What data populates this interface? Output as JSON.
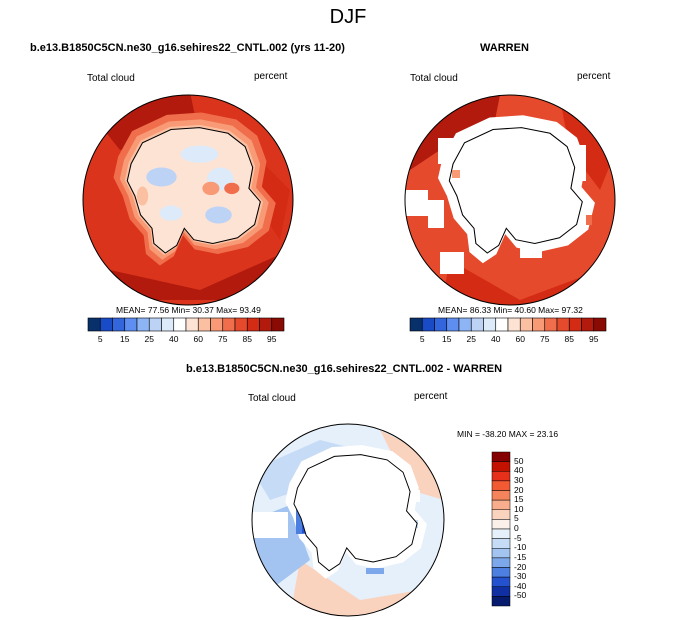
{
  "figure_title": "DJF",
  "panels": [
    {
      "title": "b.e13.B1850C5CN.ne30_g16.sehires22_CNTL.002 (yrs 11-20)",
      "left_label": "Total cloud",
      "right_label": "percent",
      "stats": "MEAN=  77.56  Min=  30.37  Max=  93.49",
      "colorbar_ticks": [
        "5",
        "15",
        "25",
        "40",
        "60",
        "75",
        "85",
        "95"
      ]
    },
    {
      "title": "WARREN",
      "left_label": "Total cloud",
      "right_label": "percent",
      "stats": "MEAN=  86.33  Min=  40.60  Max=  97.32",
      "colorbar_ticks": [
        "5",
        "15",
        "25",
        "40",
        "60",
        "75",
        "85",
        "95"
      ]
    },
    {
      "title": "b.e13.B1850C5CN.ne30_g16.sehires22_CNTL.002 - WARREN",
      "left_label": "Total cloud",
      "right_label": "percent",
      "stats": "MIN = -38.20  MAX =  23.16",
      "colorbar_ticks": [
        "50",
        "40",
        "30",
        "20",
        "15",
        "10",
        "5",
        "0",
        "-5",
        "-10",
        "-15",
        "-20",
        "-30",
        "-40",
        "-50"
      ]
    }
  ],
  "colors": {
    "abs_scale": [
      "#08306b",
      "#1a4bc6",
      "#3366dd",
      "#5e8ff0",
      "#8db4f5",
      "#bcd3f5",
      "#ddeafa",
      "#ffffff",
      "#fde3d4",
      "#fbc0a2",
      "#f79a75",
      "#f06e4c",
      "#e64a2c",
      "#d42b15",
      "#b11a0c",
      "#8a0a04"
    ],
    "diff_scale": [
      "#850000",
      "#c41200",
      "#e6301a",
      "#f15a33",
      "#f5845c",
      "#f8ad8c",
      "#fad3bf",
      "#fbf0ea",
      "#e6f0fb",
      "#c6dcf6",
      "#a3c3f0",
      "#7ca7ea",
      "#4d7fe0",
      "#2452cf",
      "#102fa3",
      "#061a6e"
    ],
    "land_white": "#ffffff",
    "coast": "#000000"
  }
}
